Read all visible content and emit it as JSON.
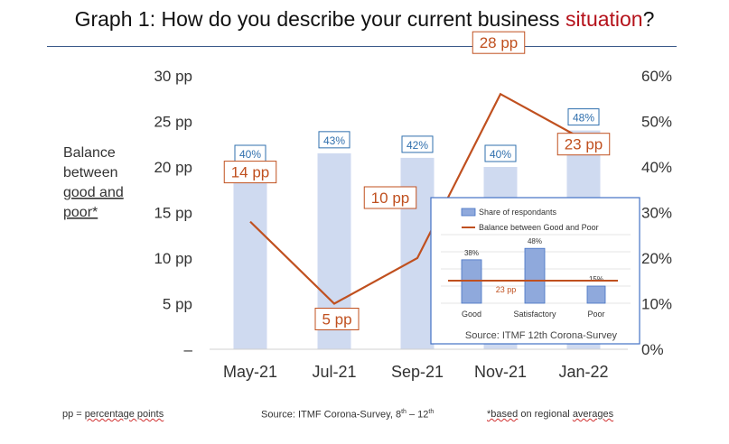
{
  "title": {
    "prefix": "Graph 1: How do you describe your current business ",
    "highlight": "situation",
    "suffix": "?"
  },
  "left_axis_label": [
    "Balance",
    "between",
    "good and",
    "poor*"
  ],
  "chart_data": {
    "type": "bar+line",
    "categories": [
      "May-21",
      "Jul-21",
      "Sep-21",
      "Nov-21",
      "Jan-22"
    ],
    "bars": {
      "axis": "right",
      "values": [
        40,
        43,
        42,
        40,
        48
      ],
      "labels": [
        "40%",
        "43%",
        "42%",
        "40%",
        "48%"
      ],
      "color": "#cfdaf0"
    },
    "line": {
      "axis": "left",
      "values": [
        14,
        5,
        10,
        28,
        23
      ],
      "labels": [
        "14 pp",
        "5 pp",
        "10 pp",
        "28 pp",
        "23 pp"
      ],
      "color": "#c0501f"
    },
    "left_axis": {
      "ylim": [
        0,
        30
      ],
      "ticks": [
        "–",
        "5 pp",
        "10 pp",
        "15 pp",
        "20 pp",
        "25 pp",
        "30 pp"
      ]
    },
    "right_axis": {
      "ylim": [
        0,
        60
      ],
      "ticks": [
        "0%",
        "10%",
        "20%",
        "30%",
        "40%",
        "50%",
        "60%"
      ]
    },
    "inset": {
      "type": "bar+line",
      "legend": [
        "Share of respondants",
        "Balance between Good and Poor"
      ],
      "categories": [
        "Good",
        "Satisfactory",
        "Poor"
      ],
      "values": [
        38,
        48,
        15
      ],
      "labels": [
        "38%",
        "48%",
        "15%"
      ],
      "line_value_label": "23 pp",
      "source": "Source: ITMF 12th Corona-Survey"
    }
  },
  "footer": {
    "pp_prefix": "pp = ",
    "pp_text": "percentage points",
    "source_text": "Source: ITMF Corona-Survey, 8",
    "source_sup1": "th",
    "source_mid": " – 12",
    "source_sup2": "th",
    "note_based": "*based",
    "note_mid": " on regional ",
    "note_avg": "averages"
  },
  "colors": {
    "bar": "#cfdaf0",
    "line": "#c0501f",
    "label_blue": "#2f6fad",
    "inset_bar": "#8fa9dc"
  }
}
